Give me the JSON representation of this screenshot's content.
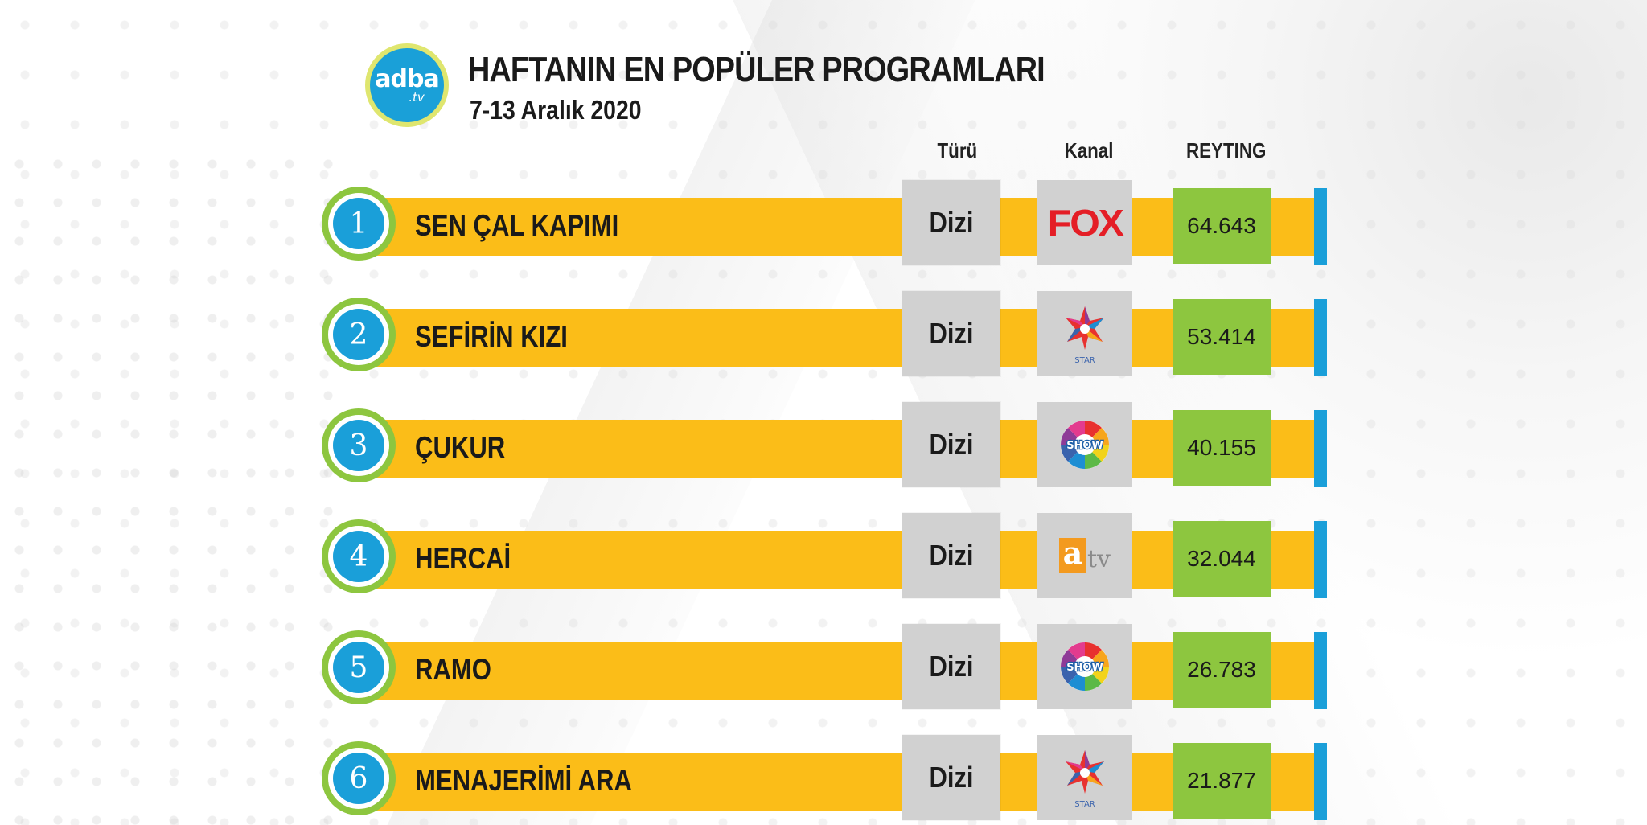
{
  "header": {
    "logo_text": "adba",
    "logo_sub": ".tv",
    "title": "HAFTANIN EN POPÜLER PROGRAMLARI",
    "subtitle": "7-13 Aralık 2020"
  },
  "columns": {
    "genre": "Türü",
    "channel": "Kanal",
    "rating": "REYTING"
  },
  "rows": [
    {
      "rank": "1",
      "name": "SEN ÇAL KAPIMI",
      "genre": "Dizi",
      "channel": "FOX",
      "channel_icon": "fox-logo-icon",
      "rating": "64.643"
    },
    {
      "rank": "2",
      "name": "SEFİRİN KIZI",
      "genre": "Dizi",
      "channel": "STAR",
      "channel_icon": "star-tv-logo-icon",
      "rating": "53.414"
    },
    {
      "rank": "3",
      "name": "ÇUKUR",
      "genre": "Dizi",
      "channel": "SHOW",
      "channel_icon": "show-tv-logo-icon",
      "rating": "40.155"
    },
    {
      "rank": "4",
      "name": "HERCAİ",
      "genre": "Dizi",
      "channel": "atv",
      "channel_icon": "atv-logo-icon",
      "rating": "32.044"
    },
    {
      "rank": "5",
      "name": "RAMO",
      "genre": "Dizi",
      "channel": "SHOW",
      "channel_icon": "show-tv-logo-icon",
      "rating": "26.783"
    },
    {
      "rank": "6",
      "name": "MENAJERİMİ ARA",
      "genre": "Dizi",
      "channel": "STAR",
      "channel_icon": "star-tv-logo-icon",
      "rating": "21.877"
    }
  ],
  "colors": {
    "bar": "#fbbd18",
    "accent_blue": "#1a9fd9",
    "accent_green": "#8dc63f",
    "box_gray": "#d1d1d1"
  }
}
